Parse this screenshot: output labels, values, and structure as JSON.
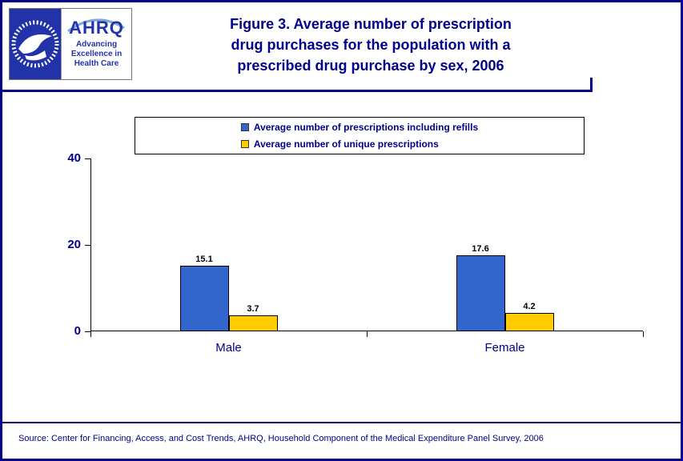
{
  "header": {
    "title_lines": [
      "Figure 3. Average number of prescription",
      "drug purchases for the population with a",
      "prescribed drug purchase by sex, 2006"
    ],
    "logos": {
      "hhs_icon": "hhs-eagle-seal",
      "ahrq_acronym": "AHRQ",
      "ahrq_tagline_lines": [
        "Advancing",
        "Excellence in",
        "Health Care"
      ]
    }
  },
  "colors": {
    "accent_navy": "#00008B",
    "logo_blue": "#2233AA",
    "bar_blue": "#3366CC",
    "bar_yellow": "#FFCC00"
  },
  "chart_data": {
    "type": "bar",
    "categories": [
      "Male",
      "Female"
    ],
    "series": [
      {
        "name": "Average number of prescriptions including refills",
        "color": "#3366CC",
        "values": [
          15.1,
          17.6
        ]
      },
      {
        "name": "Average number of unique prescriptions",
        "color": "#FFCC00",
        "values": [
          3.7,
          4.2
        ]
      }
    ],
    "ylim": [
      0,
      40
    ],
    "yticks": [
      0,
      20,
      40
    ],
    "grid": false,
    "legend_position": "top",
    "value_labels": true,
    "xlabel": "",
    "ylabel": ""
  },
  "footer": {
    "source": "Source: Center for Financing, Access, and Cost Trends, AHRQ, Household Component of the Medical Expenditure Panel Survey, 2006"
  }
}
